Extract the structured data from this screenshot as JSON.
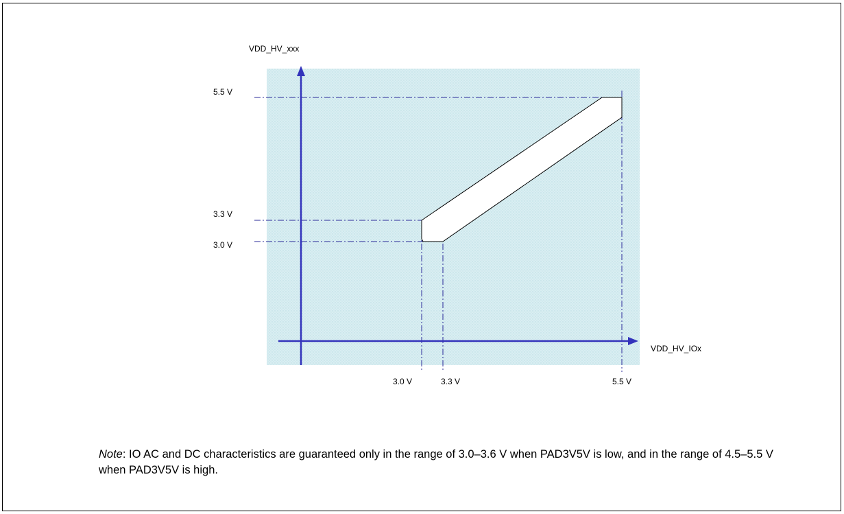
{
  "diagram": {
    "y_axis_label": "VDD_HV_xxx",
    "x_axis_label": "VDD_HV_IOx",
    "y_ticks": [
      {
        "label": "5.5 V",
        "value": 5.5
      },
      {
        "label": "3.3 V",
        "value": 3.3
      },
      {
        "label": "3.0 V",
        "value": 3.0
      }
    ],
    "x_ticks": [
      {
        "label": "3.0 V",
        "value": 3.0
      },
      {
        "label": "3.3 V",
        "value": 3.3
      },
      {
        "label": "5.5 V",
        "value": 5.5
      }
    ],
    "colors": {
      "axis": "#3333bb",
      "guide": "#2b2b99",
      "background": "#d6ecf0",
      "band_fill": "#ffffff",
      "band_outline": "#000000"
    }
  },
  "note": {
    "prefix": "Note",
    "text": ": IO AC and DC characteristics are guaranteed only in the range of 3.0–3.6 V when PAD3V5V is low, and in the range of 4.5–5.5 V when PAD3V5V is high."
  }
}
